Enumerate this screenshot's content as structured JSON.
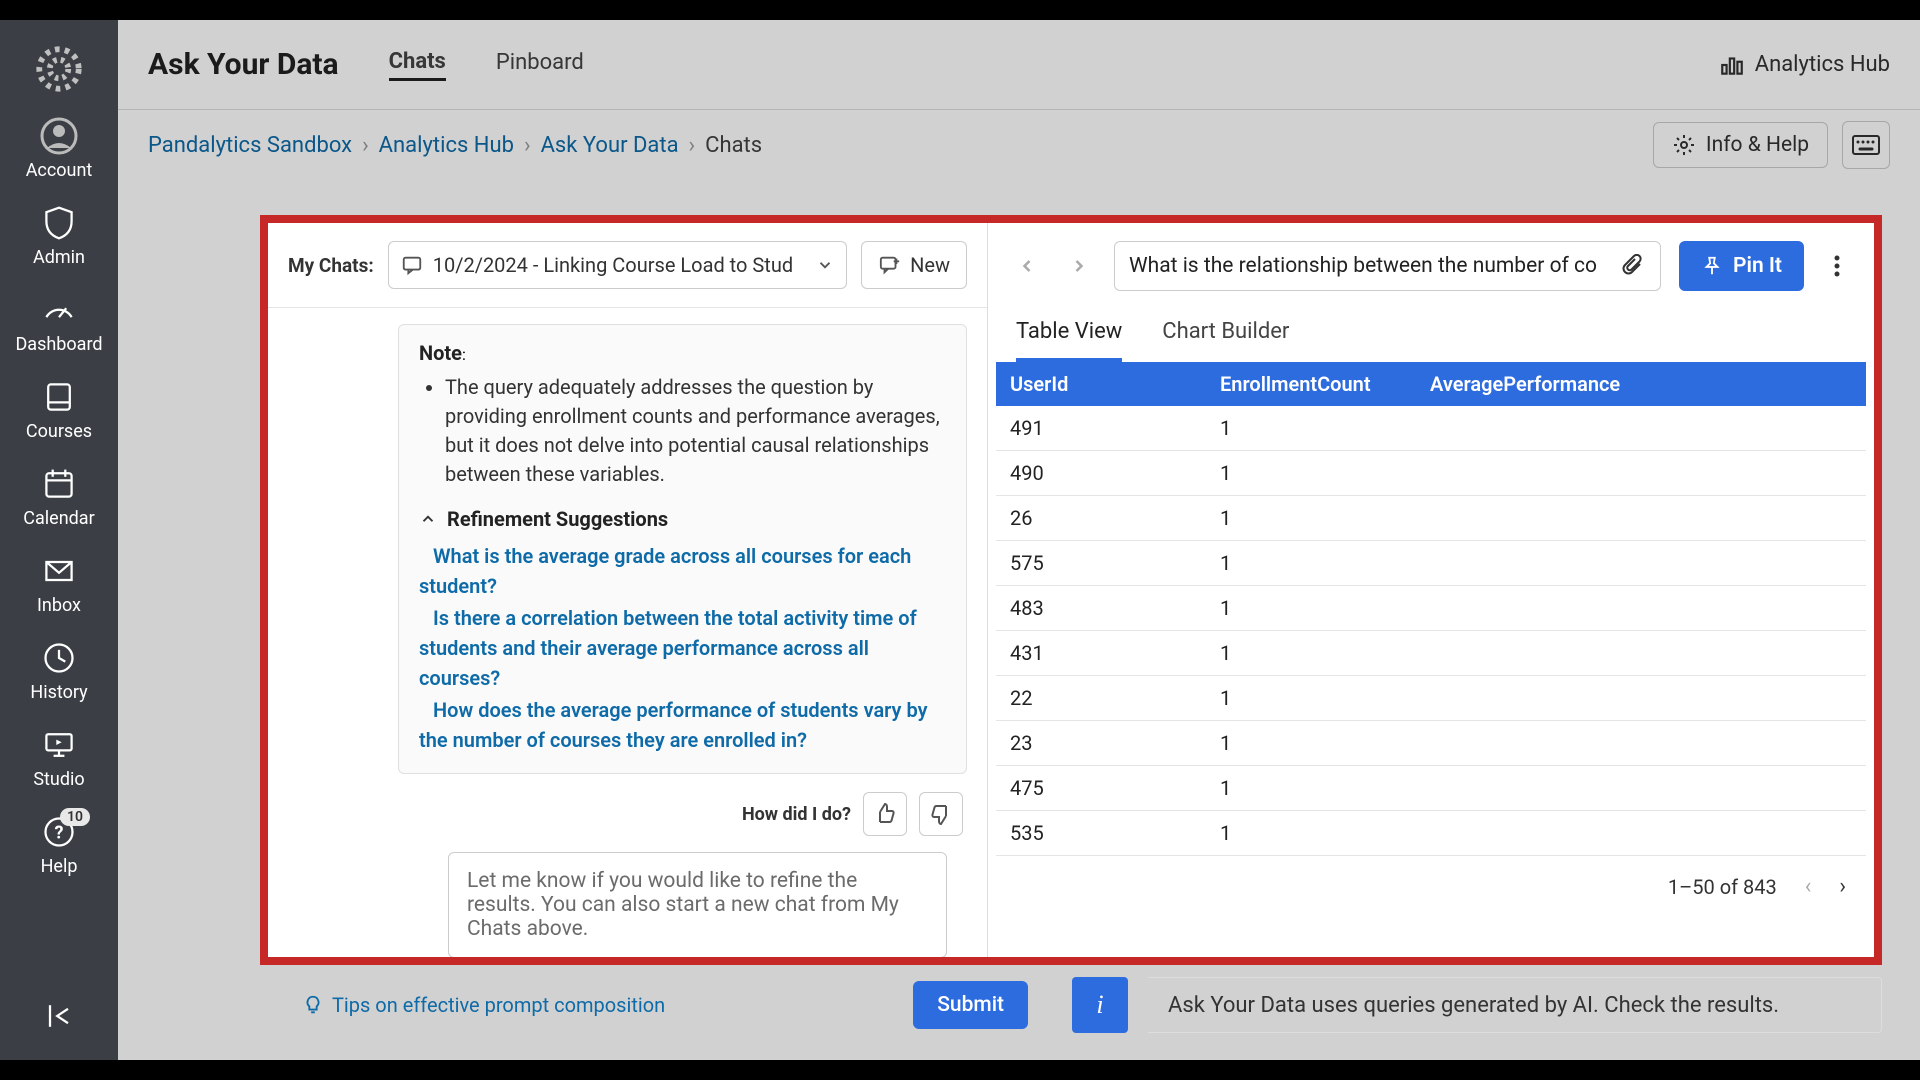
{
  "sidenav": {
    "items": [
      {
        "key": "account",
        "label": "Account"
      },
      {
        "key": "admin",
        "label": "Admin"
      },
      {
        "key": "dashboard",
        "label": "Dashboard"
      },
      {
        "key": "courses",
        "label": "Courses"
      },
      {
        "key": "calendar",
        "label": "Calendar"
      },
      {
        "key": "inbox",
        "label": "Inbox"
      },
      {
        "key": "history",
        "label": "History"
      },
      {
        "key": "studio",
        "label": "Studio"
      },
      {
        "key": "help",
        "label": "Help",
        "badge": "10"
      }
    ]
  },
  "topbar": {
    "title": "Ask Your Data",
    "tabs": [
      {
        "label": "Chats",
        "active": true
      },
      {
        "label": "Pinboard",
        "active": false
      }
    ],
    "right_label": "Analytics Hub"
  },
  "breadcrumb": {
    "items": [
      "Pandalytics Sandbox",
      "Analytics Hub",
      "Ask Your Data"
    ],
    "current": "Chats",
    "info_help": "Info & Help"
  },
  "chat": {
    "my_chats_label": "My Chats:",
    "selected": "10/2/2024 - Linking Course Load to Stud",
    "new_label": "New",
    "note_label": "Note",
    "note_bullet": "The query adequately addresses the question by providing enrollment counts and performance averages, but it does not delve into potential causal relationships between these variables.",
    "refine_header": "Refinement Suggestions",
    "suggestions": [
      "What is the average grade across all courses for each student?",
      "Is there a correlation between the total activity time of students and their average performance across all courses?",
      "How does the average performance of students vary by the number of courses they are enrolled in?"
    ],
    "feedback_label": "How did I do?",
    "compose_placeholder": "Let me know if you would like to refine the results.  You can also start a new chat from My Chats above.",
    "tips_label": "Tips on effective prompt composition",
    "submit_label": "Submit"
  },
  "results": {
    "query_text": "What is the relationship between the number of co",
    "pin_label": "Pin It",
    "tabs": [
      {
        "label": "Table View",
        "active": true
      },
      {
        "label": "Chart Builder",
        "active": false
      }
    ],
    "columns": [
      "UserId",
      "EnrollmentCount",
      "AveragePerformance"
    ],
    "rows": [
      [
        "491",
        "1",
        ""
      ],
      [
        "490",
        "1",
        ""
      ],
      [
        "26",
        "1",
        ""
      ],
      [
        "575",
        "1",
        ""
      ],
      [
        "483",
        "1",
        ""
      ],
      [
        "431",
        "1",
        ""
      ],
      [
        "22",
        "1",
        ""
      ],
      [
        "23",
        "1",
        ""
      ],
      [
        "475",
        "1",
        ""
      ],
      [
        "535",
        "1",
        ""
      ]
    ],
    "pager": "1–50 of 843",
    "info_banner": "Ask Your Data uses queries generated by AI. Check the results."
  },
  "colors": {
    "accent": "#2d6cdf",
    "link": "#0e6ba8",
    "highlight_border": "#c62828",
    "sidenav_bg": "#3b3f45"
  }
}
